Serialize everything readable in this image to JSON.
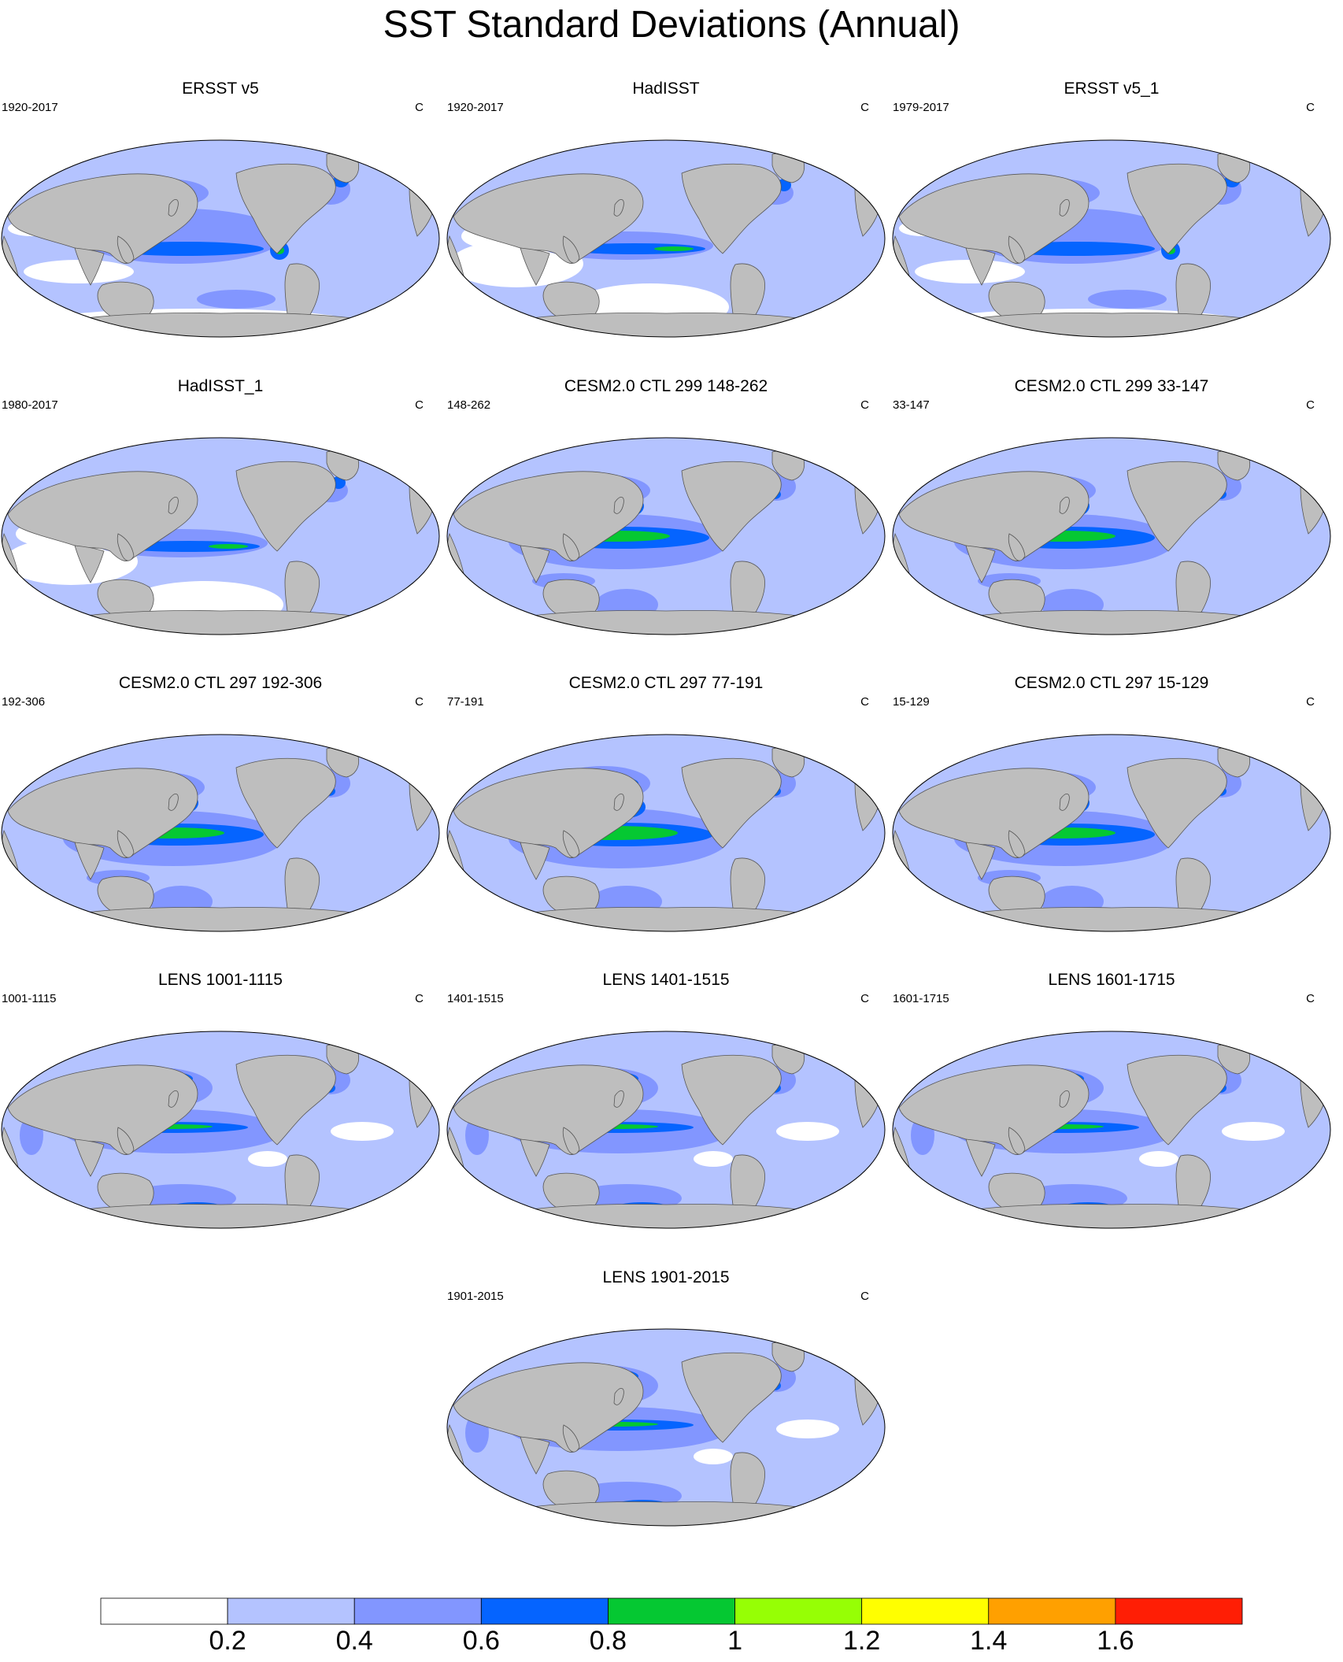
{
  "title": "SST Standard Deviations (Annual)",
  "panels": [
    {
      "title": "ERSST v5",
      "period": "1920-2017",
      "unit": "C",
      "kind": "obs"
    },
    {
      "title": "HadISST",
      "period": "1920-2017",
      "unit": "C",
      "kind": "obs_light"
    },
    {
      "title": "ERSST v5_1",
      "period": "1979-2017",
      "unit": "C",
      "kind": "obs"
    },
    {
      "title": "HadISST_1",
      "period": "1980-2017",
      "unit": "C",
      "kind": "obs_light"
    },
    {
      "title": "CESM2.0 CTL 299 148-262",
      "period": "148-262",
      "unit": "C",
      "kind": "model"
    },
    {
      "title": "CESM2.0 CTL 299 33-147",
      "period": "33-147",
      "unit": "C",
      "kind": "model"
    },
    {
      "title": "CESM2.0 CTL 297 192-306",
      "period": "192-306",
      "unit": "C",
      "kind": "model"
    },
    {
      "title": "CESM2.0 CTL 297 77-191",
      "period": "77-191",
      "unit": "C",
      "kind": "model_strong"
    },
    {
      "title": "CESM2.0 CTL 297 15-129",
      "period": "15-129",
      "unit": "C",
      "kind": "model"
    },
    {
      "title": "LENS 1001-1115",
      "period": "1001-1115",
      "unit": "C",
      "kind": "lens"
    },
    {
      "title": "LENS 1401-1515",
      "period": "1401-1515",
      "unit": "C",
      "kind": "lens"
    },
    {
      "title": "LENS 1601-1715",
      "period": "1601-1715",
      "unit": "C",
      "kind": "lens"
    },
    {
      "title": "LENS 1901-2015",
      "period": "1901-2015",
      "unit": "C",
      "kind": "lens"
    }
  ],
  "colorbar": {
    "colors": [
      "#ffffff",
      "#b4c3ff",
      "#8296ff",
      "#0564ff",
      "#05c832",
      "#96ff05",
      "#ffff00",
      "#ffa000",
      "#ff1e05"
    ],
    "labels": [
      "0.2",
      "0.4",
      "0.6",
      "0.8",
      "1",
      "1.2",
      "1.4",
      "1.6"
    ]
  },
  "style": {
    "land": "#bebebe",
    "ocean_base": "#b4c3ff"
  }
}
